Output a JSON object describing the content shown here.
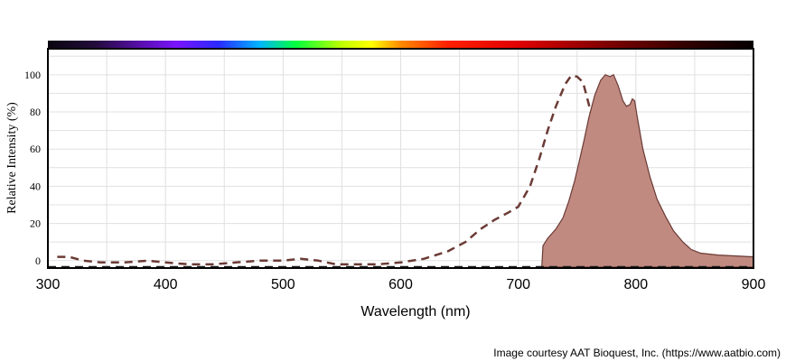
{
  "chart_data": {
    "type": "area",
    "xlabel": "Wavelength (nm)",
    "ylabel": "Relative Intensity (%)",
    "xlim": [
      300,
      900
    ],
    "ylim": [
      -4,
      114
    ],
    "x_ticks": [
      300,
      400,
      500,
      600,
      700,
      800,
      900
    ],
    "y_ticks": [
      0,
      20,
      40,
      60,
      80,
      100
    ],
    "grid": true,
    "legend": "none",
    "series": [
      {
        "style": "dashed-line",
        "color": "#6b3a35",
        "points": [
          [
            308,
            2
          ],
          [
            318,
            2
          ],
          [
            330,
            0
          ],
          [
            345,
            -1
          ],
          [
            365,
            -1
          ],
          [
            385,
            0
          ],
          [
            400,
            -1
          ],
          [
            420,
            -2
          ],
          [
            440,
            -2
          ],
          [
            460,
            -1
          ],
          [
            480,
            0
          ],
          [
            500,
            0
          ],
          [
            515,
            1
          ],
          [
            530,
            0
          ],
          [
            545,
            -2
          ],
          [
            560,
            -2
          ],
          [
            580,
            -2
          ],
          [
            600,
            -1
          ],
          [
            620,
            1
          ],
          [
            640,
            5
          ],
          [
            655,
            10
          ],
          [
            668,
            17
          ],
          [
            680,
            22
          ],
          [
            692,
            26
          ],
          [
            700,
            29
          ],
          [
            710,
            40
          ],
          [
            718,
            55
          ],
          [
            725,
            70
          ],
          [
            732,
            83
          ],
          [
            740,
            95
          ],
          [
            745,
            99.5
          ],
          [
            750,
            99
          ],
          [
            755,
            96
          ],
          [
            760,
            84
          ],
          [
            765,
            70
          ],
          [
            770,
            55
          ],
          [
            775,
            40
          ],
          [
            780,
            28
          ],
          [
            785,
            18
          ],
          [
            790,
            12
          ],
          [
            795,
            6
          ],
          [
            805,
            1
          ],
          [
            815,
            -2
          ],
          [
            830,
            -3
          ],
          [
            845,
            -3.5
          ],
          [
            900,
            -3.5
          ]
        ]
      },
      {
        "style": "filled-area",
        "color": "#6b3a35",
        "fill": "#c08a80",
        "points": [
          [
            720,
            -3.5
          ],
          [
            721,
            8
          ],
          [
            725,
            12
          ],
          [
            732,
            17
          ],
          [
            738,
            23
          ],
          [
            743,
            32
          ],
          [
            748,
            43
          ],
          [
            752,
            54
          ],
          [
            756,
            65
          ],
          [
            760,
            77
          ],
          [
            765,
            89
          ],
          [
            770,
            97
          ],
          [
            774,
            100
          ],
          [
            778,
            99
          ],
          [
            781,
            100
          ],
          [
            785,
            94
          ],
          [
            789,
            86
          ],
          [
            792,
            83
          ],
          [
            795,
            84
          ],
          [
            797,
            87
          ],
          [
            799,
            86
          ],
          [
            801,
            78
          ],
          [
            806,
            60
          ],
          [
            812,
            45
          ],
          [
            818,
            33
          ],
          [
            825,
            24
          ],
          [
            832,
            16
          ],
          [
            840,
            10
          ],
          [
            847,
            6
          ],
          [
            855,
            4
          ],
          [
            870,
            3
          ],
          [
            900,
            2
          ],
          [
            900,
            -3.5
          ]
        ]
      }
    ],
    "baseline": {
      "style": "dashed-line",
      "color": "#1a1a1a",
      "y": -3.5
    }
  },
  "spectrum_bar": {
    "stops": [
      {
        "nm": 300,
        "color": "#0a0610"
      },
      {
        "nm": 340,
        "color": "#220a3a"
      },
      {
        "nm": 380,
        "color": "#5a0fb0"
      },
      {
        "nm": 410,
        "color": "#7a14ff"
      },
      {
        "nm": 445,
        "color": "#2a2aff"
      },
      {
        "nm": 480,
        "color": "#00b4ff"
      },
      {
        "nm": 510,
        "color": "#00ff40"
      },
      {
        "nm": 550,
        "color": "#c0ff00"
      },
      {
        "nm": 575,
        "color": "#ffff00"
      },
      {
        "nm": 600,
        "color": "#ff8a00"
      },
      {
        "nm": 640,
        "color": "#ff2000"
      },
      {
        "nm": 700,
        "color": "#e00000"
      },
      {
        "nm": 780,
        "color": "#7a0000"
      },
      {
        "nm": 850,
        "color": "#2a0000"
      },
      {
        "nm": 900,
        "color": "#050000"
      }
    ]
  },
  "credit": "Image courtesy AAT Bioquest, Inc. (https://www.aatbio.com)"
}
